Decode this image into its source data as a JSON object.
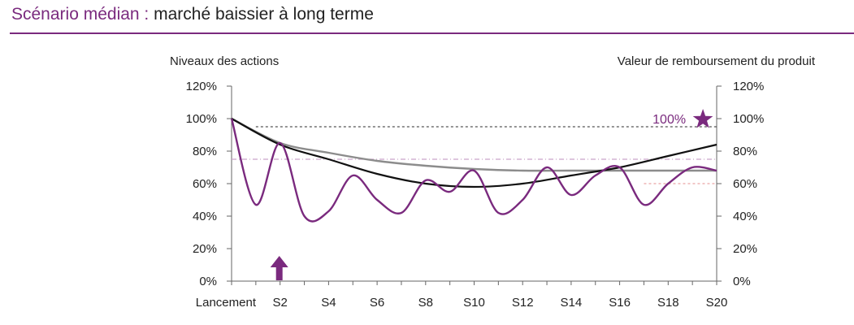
{
  "header": {
    "title_part1": "Scénario médian",
    "separator": " : ",
    "title_part2": "marché baissier à long terme"
  },
  "colors": {
    "brand": "#7a2a7e",
    "dark_series": "#111111",
    "gray_series": "#8c8c8c",
    "pink_dashed": "#e9a3a3",
    "dark_dashed": "#555555",
    "dashdot": "#c9a3c9"
  },
  "chart_data": {
    "type": "line",
    "ylabel_left": "Niveaux des actions",
    "ylabel_right": "Valeur de remboursement du produit",
    "ylim": [
      0,
      120
    ],
    "y_ticks": [
      "0%",
      "20%",
      "40%",
      "60%",
      "80%",
      "100%",
      "120%"
    ],
    "y_tick_values": [
      0,
      20,
      40,
      60,
      80,
      100,
      120
    ],
    "xlim": [
      0,
      20
    ],
    "x_ticks": [
      "Lancement",
      "S2",
      "S4",
      "S6",
      "S8",
      "S10",
      "S12",
      "S14",
      "S16",
      "S18",
      "S20"
    ],
    "x_tick_values": [
      0,
      2,
      4,
      6,
      8,
      10,
      12,
      14,
      16,
      18,
      20
    ],
    "series": [
      {
        "color": "#7a2a7e",
        "style": "smooth",
        "points": [
          [
            0,
            100
          ],
          [
            1,
            47
          ],
          [
            2,
            85
          ],
          [
            3,
            40
          ],
          [
            4,
            43
          ],
          [
            5,
            65
          ],
          [
            6,
            50
          ],
          [
            7,
            42
          ],
          [
            8,
            62
          ],
          [
            9,
            55
          ],
          [
            10,
            68
          ],
          [
            11,
            42
          ],
          [
            12,
            50
          ],
          [
            13,
            70
          ],
          [
            14,
            53
          ],
          [
            15,
            65
          ],
          [
            16,
            70
          ],
          [
            17,
            47
          ],
          [
            18,
            60
          ],
          [
            19,
            70
          ],
          [
            20,
            68
          ]
        ]
      },
      {
        "color": "#111111",
        "style": "smooth",
        "points": [
          [
            0,
            100
          ],
          [
            2,
            84
          ],
          [
            4,
            75
          ],
          [
            6,
            66
          ],
          [
            8,
            60
          ],
          [
            10,
            58
          ],
          [
            12,
            60
          ],
          [
            14,
            65
          ],
          [
            16,
            70
          ],
          [
            18,
            77
          ],
          [
            20,
            84
          ]
        ]
      },
      {
        "color": "#8c8c8c",
        "style": "smooth",
        "points": [
          [
            0,
            100
          ],
          [
            2,
            85
          ],
          [
            4,
            79
          ],
          [
            6,
            74
          ],
          [
            8,
            71
          ],
          [
            10,
            69
          ],
          [
            12,
            68
          ],
          [
            14,
            68
          ],
          [
            16,
            68
          ],
          [
            18,
            68
          ],
          [
            20,
            68
          ]
        ]
      }
    ],
    "reference_lines": [
      {
        "y": 95,
        "from": 1,
        "to": 20,
        "style": "dashed",
        "color": "#555555"
      },
      {
        "y": 75,
        "from": 0,
        "to": 20,
        "style": "dashdot",
        "color": "#c9a3c9"
      },
      {
        "y": 60,
        "from": 17,
        "to": 20,
        "style": "dashed",
        "color": "#e9a3a3"
      }
    ],
    "annotations": [
      {
        "text": "100%",
        "x": 19.5,
        "y": 100,
        "color": "#7a2a7e",
        "marker": "star"
      },
      {
        "marker": "up-arrow",
        "x": 2,
        "y": 0,
        "color": "#7a2a7e"
      }
    ]
  }
}
